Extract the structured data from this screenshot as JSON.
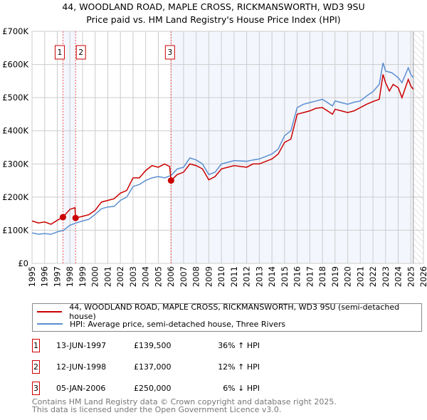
{
  "chart_data": {
    "type": "line",
    "title": "44, WOODLAND ROAD, MAPLE CROSS, RICKMANSWORTH, WD3 9SU",
    "subtitle": "Price paid vs. HM Land Registry's House Price Index (HPI)",
    "xlim": [
      1995,
      2026
    ],
    "ylim": [
      0,
      700000
    ],
    "x_ticks": [
      "1995",
      "1996",
      "1997",
      "1998",
      "1999",
      "2000",
      "2001",
      "2002",
      "2003",
      "2004",
      "2005",
      "2006",
      "2007",
      "2008",
      "2009",
      "2010",
      "2011",
      "2012",
      "2013",
      "2014",
      "2015",
      "2016",
      "2017",
      "2018",
      "2019",
      "2020",
      "2021",
      "2022",
      "2023",
      "2024",
      "2025",
      "2026"
    ],
    "y_ticks": [
      {
        "v": 0,
        "l": "£0"
      },
      {
        "v": 100000,
        "l": "£100K"
      },
      {
        "v": 200000,
        "l": "£200K"
      },
      {
        "v": 300000,
        "l": "£300K"
      },
      {
        "v": 400000,
        "l": "£400K"
      },
      {
        "v": 500000,
        "l": "£500K"
      },
      {
        "v": 600000,
        "l": "£600K"
      },
      {
        "v": 700000,
        "l": "£700K"
      }
    ],
    "grid": true,
    "shaded_ranges": [
      [
        1997.45,
        1998.45
      ],
      [
        2006.01,
        2025.2
      ]
    ],
    "forecast_from": 2025.2,
    "series": [
      {
        "name": "44, WOODLAND ROAD, MAPLE CROSS, RICKMANSWORTH, WD3 9SU (semi-detached house)",
        "color": "#cc0000",
        "points": [
          [
            1995,
            128
          ],
          [
            1995.5,
            122
          ],
          [
            1996,
            125
          ],
          [
            1996.5,
            118
          ],
          [
            1997,
            130
          ],
          [
            1997.45,
            139.5
          ],
          [
            1998,
            163
          ],
          [
            1998.4,
            168
          ],
          [
            1998.45,
            137
          ],
          [
            1999,
            142
          ],
          [
            1999.5,
            147
          ],
          [
            2000,
            160
          ],
          [
            2000.5,
            185
          ],
          [
            2001,
            190
          ],
          [
            2001.5,
            195
          ],
          [
            2002,
            212
          ],
          [
            2002.5,
            220
          ],
          [
            2003,
            258
          ],
          [
            2003.5,
            258
          ],
          [
            2004,
            280
          ],
          [
            2004.5,
            295
          ],
          [
            2005,
            290
          ],
          [
            2005.5,
            300
          ],
          [
            2005.9,
            292
          ],
          [
            2006.01,
            250
          ],
          [
            2006.5,
            268
          ],
          [
            2007,
            275
          ],
          [
            2007.5,
            300
          ],
          [
            2008,
            295
          ],
          [
            2008.5,
            285
          ],
          [
            2009,
            252
          ],
          [
            2009.5,
            262
          ],
          [
            2010,
            285
          ],
          [
            2011,
            295
          ],
          [
            2012,
            290
          ],
          [
            2012.5,
            300
          ],
          [
            2013,
            300
          ],
          [
            2014,
            315
          ],
          [
            2014.5,
            330
          ],
          [
            2015,
            365
          ],
          [
            2015.5,
            375
          ],
          [
            2016,
            450
          ],
          [
            2016.5,
            455
          ],
          [
            2017,
            460
          ],
          [
            2017.5,
            468
          ],
          [
            2018,
            470
          ],
          [
            2018.8,
            450
          ],
          [
            2019,
            465
          ],
          [
            2019.5,
            460
          ],
          [
            2020,
            455
          ],
          [
            2020.5,
            460
          ],
          [
            2021,
            470
          ],
          [
            2021.5,
            480
          ],
          [
            2022,
            488
          ],
          [
            2022.5,
            495
          ],
          [
            2022.8,
            570
          ],
          [
            2023,
            545
          ],
          [
            2023.3,
            520
          ],
          [
            2023.6,
            540
          ],
          [
            2024,
            530
          ],
          [
            2024.3,
            500
          ],
          [
            2024.8,
            555
          ],
          [
            2025,
            535
          ],
          [
            2025.2,
            525
          ]
        ]
      },
      {
        "name": "HPI: Average price, semi-detached house, Three Rivers",
        "color": "#5b8fd0",
        "points": [
          [
            1995,
            92
          ],
          [
            1995.5,
            88
          ],
          [
            1996,
            90
          ],
          [
            1996.5,
            88
          ],
          [
            1997,
            95
          ],
          [
            1997.5,
            100
          ],
          [
            1998,
            115
          ],
          [
            1998.5,
            122
          ],
          [
            1999,
            128
          ],
          [
            1999.5,
            133
          ],
          [
            2000,
            148
          ],
          [
            2000.5,
            165
          ],
          [
            2001,
            170
          ],
          [
            2001.5,
            172
          ],
          [
            2002,
            190
          ],
          [
            2002.5,
            200
          ],
          [
            2003,
            232
          ],
          [
            2003.5,
            238
          ],
          [
            2004,
            250
          ],
          [
            2004.5,
            258
          ],
          [
            2005,
            262
          ],
          [
            2005.5,
            258
          ],
          [
            2006,
            265
          ],
          [
            2006.5,
            285
          ],
          [
            2007,
            290
          ],
          [
            2007.5,
            318
          ],
          [
            2008,
            312
          ],
          [
            2008.5,
            300
          ],
          [
            2009,
            268
          ],
          [
            2009.5,
            275
          ],
          [
            2010,
            300
          ],
          [
            2011,
            310
          ],
          [
            2012,
            308
          ],
          [
            2012.5,
            312
          ],
          [
            2013,
            315
          ],
          [
            2014,
            330
          ],
          [
            2014.5,
            345
          ],
          [
            2015,
            385
          ],
          [
            2015.5,
            400
          ],
          [
            2016,
            470
          ],
          [
            2016.5,
            480
          ],
          [
            2017,
            485
          ],
          [
            2017.5,
            490
          ],
          [
            2018,
            495
          ],
          [
            2018.8,
            475
          ],
          [
            2019,
            490
          ],
          [
            2019.5,
            485
          ],
          [
            2020,
            480
          ],
          [
            2020.5,
            486
          ],
          [
            2021,
            490
          ],
          [
            2021.5,
            505
          ],
          [
            2022,
            518
          ],
          [
            2022.5,
            540
          ],
          [
            2022.8,
            605
          ],
          [
            2023,
            580
          ],
          [
            2023.5,
            575
          ],
          [
            2024,
            560
          ],
          [
            2024.3,
            545
          ],
          [
            2024.8,
            590
          ],
          [
            2025,
            570
          ],
          [
            2025.2,
            560
          ]
        ]
      }
    ],
    "sales": [
      {
        "id": "1",
        "date": "13-JUN-1997",
        "x": 1997.45,
        "price": "£139,500",
        "value": 139.5,
        "hpi": "36% ↑ HPI"
      },
      {
        "id": "2",
        "date": "12-JUN-1998",
        "x": 1998.45,
        "price": "£137,000",
        "value": 137,
        "hpi": "12% ↑ HPI"
      },
      {
        "id": "3",
        "date": "05-JAN-2006",
        "x": 2006.01,
        "price": "£250,000",
        "value": 250,
        "hpi": "6% ↓ HPI"
      }
    ]
  },
  "legend": {
    "property": "44, WOODLAND ROAD, MAPLE CROSS, RICKMANSWORTH, WD3 9SU (semi-detached house)",
    "hpi": "HPI: Average price, semi-detached house, Three Rivers"
  },
  "footer": {
    "line1": "Contains HM Land Registry data © Crown copyright and database right 2025.",
    "line2": "This data is licensed under the Open Government Licence v3.0."
  }
}
